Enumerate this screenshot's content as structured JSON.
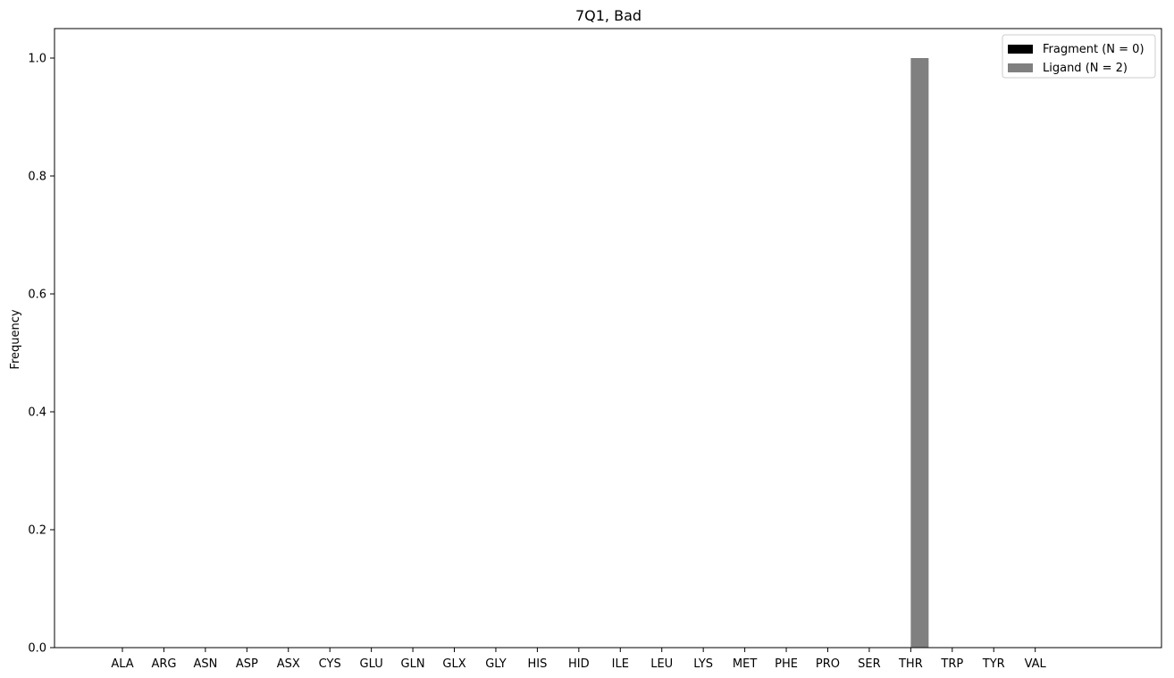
{
  "chart_data": {
    "type": "bar",
    "title": "7Q1, Bad",
    "xlabel": "",
    "ylabel": "Frequency",
    "categories": [
      "ALA",
      "ARG",
      "ASN",
      "ASP",
      "ASX",
      "CYS",
      "GLU",
      "GLN",
      "GLX",
      "GLY",
      "HIS",
      "HID",
      "ILE",
      "LEU",
      "LYS",
      "MET",
      "PHE",
      "PRO",
      "SER",
      "THR",
      "TRP",
      "TYR",
      "VAL"
    ],
    "series": [
      {
        "name": "Fragment (N = 0)",
        "color": "#000000",
        "values": [
          0,
          0,
          0,
          0,
          0,
          0,
          0,
          0,
          0,
          0,
          0,
          0,
          0,
          0,
          0,
          0,
          0,
          0,
          0,
          0,
          0,
          0,
          0
        ]
      },
      {
        "name": "Ligand (N = 2)",
        "color": "#808080",
        "values": [
          0,
          0,
          0,
          0,
          0,
          0,
          0,
          0,
          0,
          0,
          0,
          0,
          0,
          0,
          0,
          0,
          0,
          0,
          0,
          1.0,
          0,
          0,
          0
        ]
      }
    ],
    "ylim": [
      0,
      1.05
    ],
    "yticks": [
      0.0,
      0.2,
      0.4,
      0.6,
      0.8,
      1.0
    ],
    "ytick_labels": [
      "0.0",
      "0.2",
      "0.4",
      "0.6",
      "0.8",
      "1.0"
    ],
    "grid": false,
    "legend_position": "top-right"
  }
}
